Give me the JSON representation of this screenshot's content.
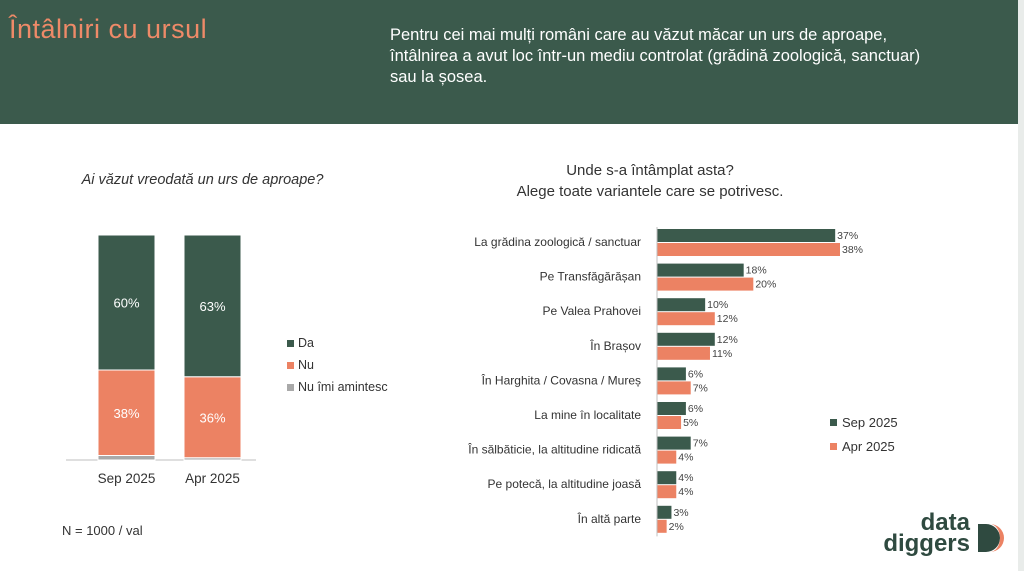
{
  "header": {
    "title": "Întâlniri cu ursul",
    "subtitle": "Pentru cei mai mulți români care au văzut măcar un urs de aproape,\nîntâlnirea a avut loc într-un mediu controlat (grădină zoologică, sanctuar)\n sau la șosea."
  },
  "left_question": "Ai văzut vreodată un urs de aproape?",
  "right_question": {
    "line1": "Unde s-a întâmplat asta?",
    "line2": "Alege toate variantele care se potrivesc."
  },
  "sample_note": "N = 1000 / val",
  "logo": {
    "line1": "data",
    "line2": "diggers"
  },
  "colors": {
    "dark": "#3b5a4c",
    "orange": "#ec8263",
    "grey": "#a9a9a9",
    "header_bg": "#3b5a4c",
    "title": "#ee8a68"
  },
  "chart_data": [
    {
      "type": "stacked-bar",
      "title": "Ai văzut vreodată un urs de aproape?",
      "categories": [
        "Sep 2025",
        "Apr 2025"
      ],
      "series": [
        {
          "name": "Da",
          "color": "#3b5a4c",
          "values": [
            60,
            63
          ],
          "labels": [
            "60%",
            "63%"
          ]
        },
        {
          "name": "Nu",
          "color": "#ec8263",
          "values": [
            38,
            36
          ],
          "labels": [
            "38%",
            "36%"
          ]
        },
        {
          "name": "Nu îmi amintesc",
          "color": "#a9a9a9",
          "values": [
            2,
            1
          ],
          "labels": [
            "",
            ""
          ]
        }
      ],
      "ylim": [
        0,
        100
      ],
      "legend": "right"
    },
    {
      "type": "bar",
      "orientation": "horizontal",
      "title": "Unde s-a întâmplat asta? Alege toate variantele care se potrivesc.",
      "categories": [
        "La grădina zoologică / sanctuar",
        "Pe Transfăgărășan",
        "Pe Valea Prahovei",
        "În Brașov",
        "În Harghita / Covasna / Mureș",
        "La mine în localitate",
        "În sălbăticie, la altitudine ridicată",
        "Pe potecă, la altitudine joasă",
        "În altă parte"
      ],
      "series": [
        {
          "name": "Sep 2025",
          "color": "#3b5a4c",
          "values": [
            37,
            18,
            10,
            12,
            6,
            6,
            7,
            4,
            3
          ],
          "labels": [
            "37%",
            "18%",
            "10%",
            "12%",
            "6%",
            "6%",
            "7%",
            "4%",
            "3%"
          ]
        },
        {
          "name": "Apr 2025",
          "color": "#ec8263",
          "values": [
            38,
            20,
            12,
            11,
            7,
            5,
            4,
            4,
            2
          ],
          "labels": [
            "38%",
            "20%",
            "12%",
            "11%",
            "7%",
            "5%",
            "4%",
            "4%",
            "2%"
          ]
        }
      ],
      "xlim": [
        0,
        38
      ],
      "legend": "right"
    }
  ]
}
